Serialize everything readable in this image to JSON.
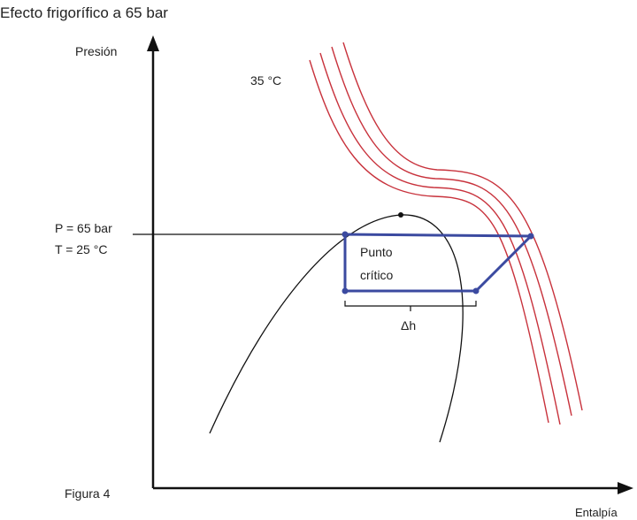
{
  "title": "Efecto frigorífico a 65 bar",
  "axes": {
    "y_label": "Presión",
    "x_label": "Entalpía"
  },
  "labels": {
    "isotherm": "35 °C",
    "pressure": "P = 65 bar",
    "temperature": "T = 25 °C",
    "point_line1": "Punto",
    "point_line2": "crítico",
    "delta": "Δh",
    "figure": "Figura 4"
  }
}
